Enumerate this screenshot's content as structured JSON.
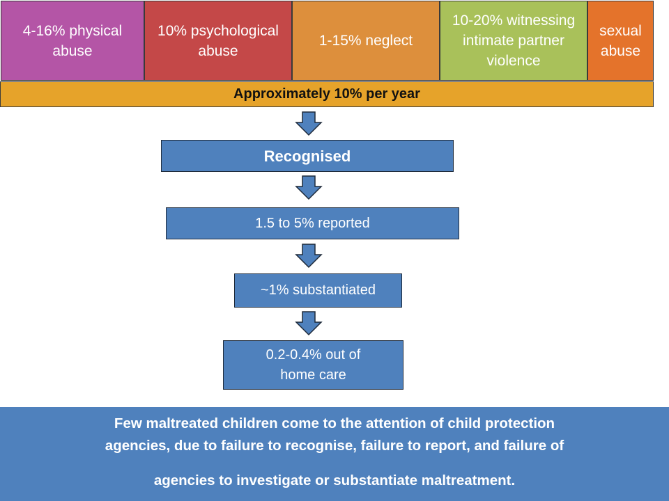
{
  "categories": [
    {
      "label": "4-16% physical abuse",
      "color": "#b455a6"
    },
    {
      "label": "10% psychological abuse",
      "color": "#c44848"
    },
    {
      "label": "1-15% neglect",
      "color": "#dd8f3c"
    },
    {
      "label": "10-20% witnessing intimate partner violence",
      "color": "#a9c15a"
    },
    {
      "label": "sexual abuse",
      "color": "#e4732b"
    }
  ],
  "band": {
    "label": "Approximately 10% per year",
    "color": "#e6a32a"
  },
  "steps": [
    {
      "label": "Recognised"
    },
    {
      "label": "1.5 to 5% reported"
    },
    {
      "label": "~1% substantiated"
    },
    {
      "label": "0.2-0.4% out of home care"
    }
  ],
  "footer": {
    "line1": "Few maltreated children come to the attention of child protection",
    "line2": "agencies, due to failure to recognise, failure to report, and failure of",
    "line3": "agencies to investigate or substantiate maltreatment."
  },
  "colors": {
    "step_fill": "#4f81bd",
    "footer_fill": "#4f81bd"
  }
}
